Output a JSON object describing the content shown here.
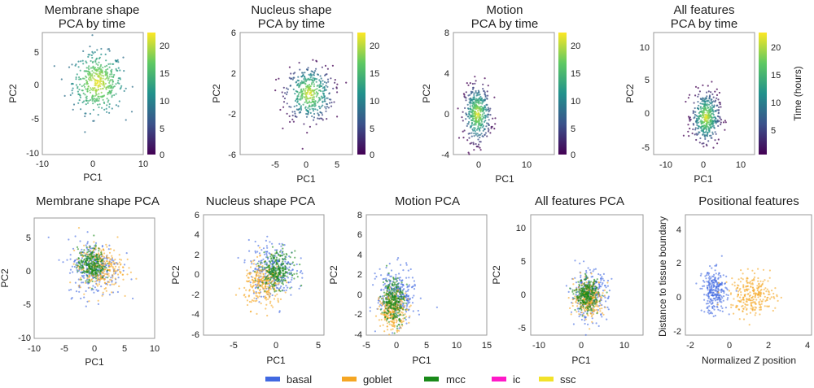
{
  "top_row": [
    {
      "title": [
        "Membrane shape",
        "PCA by time"
      ],
      "xlabel": "PC1",
      "ylabel": "PC2",
      "xticks": [
        -10,
        0,
        10
      ],
      "yticks": [
        5,
        0,
        -5,
        -10
      ],
      "cbar_ticks": [
        20,
        15,
        10,
        5,
        0
      ],
      "cbar_label": ""
    },
    {
      "title": [
        "Nucleus shape",
        "PCA by time"
      ],
      "xlabel": "PC1",
      "ylabel": "PC2",
      "xticks": [
        -5,
        0,
        5
      ],
      "yticks": [
        6,
        2,
        -2,
        -6
      ],
      "cbar_ticks": [
        20,
        15,
        10,
        5,
        0
      ],
      "cbar_label": ""
    },
    {
      "title": [
        "Motion",
        "PCA by time"
      ],
      "xlabel": "PC1",
      "ylabel": "PC2",
      "xticks": [
        0,
        10
      ],
      "yticks": [
        8,
        4,
        0,
        -4
      ],
      "cbar_ticks": [
        20,
        15,
        10,
        5,
        0
      ],
      "cbar_label": ""
    },
    {
      "title": [
        "All features",
        "PCA by time"
      ],
      "xlabel": "PC1",
      "ylabel": "PC2",
      "xticks": [
        -10,
        0,
        10
      ],
      "yticks": [
        10,
        5,
        0,
        -5
      ],
      "cbar_ticks": [
        20,
        15,
        10,
        5
      ],
      "cbar_label": "Time (hours)"
    }
  ],
  "bottom_row": [
    {
      "title": "Membrane shape PCA",
      "xlabel": "PC1",
      "ylabel": "PC2",
      "xticks": [
        -10,
        -5,
        0,
        5,
        10
      ],
      "yticks": [
        5,
        0,
        -5,
        -10
      ]
    },
    {
      "title": "Nucleus shape PCA",
      "xlabel": "PC1",
      "ylabel": "PC2",
      "xticks": [
        -5,
        0,
        5
      ],
      "yticks": [
        6,
        4,
        2,
        0,
        -2,
        -4,
        -6
      ]
    },
    {
      "title": "Motion PCA",
      "xlabel": "PC1",
      "ylabel": "PC2",
      "xticks": [
        -5,
        0,
        5,
        10,
        15
      ],
      "yticks": [
        8,
        6,
        4,
        2,
        0,
        -2,
        -4
      ]
    },
    {
      "title": "All features PCA",
      "xlabel": "PC1",
      "ylabel": "PC2",
      "xticks": [
        -10,
        0,
        10
      ],
      "yticks": [
        10,
        5,
        0,
        -5
      ]
    },
    {
      "title": "Positional features",
      "xlabel": "Normalized Z position",
      "ylabel": "Distance to tissue boundary",
      "xticks": [
        -2,
        0,
        2,
        4
      ],
      "yticks": [
        4,
        2,
        0,
        -2
      ]
    }
  ],
  "legend": [
    {
      "label": "basal",
      "color": "#4169e1"
    },
    {
      "label": "goblet",
      "color": "#f5a623"
    },
    {
      "label": "mcc",
      "color": "#1a8a1a"
    },
    {
      "label": "ic",
      "color": "#ff19c8"
    },
    {
      "label": "ssc",
      "color": "#f2e22a"
    }
  ],
  "chart_data": [
    {
      "type": "scatter",
      "title": "Membrane shape PCA by time",
      "xlabel": "PC1",
      "ylabel": "PC2",
      "xlim": [
        -10,
        10
      ],
      "ylim": [
        -10,
        7
      ],
      "colorbar": {
        "label": "",
        "range": [
          0,
          22
        ],
        "colormap": "viridis"
      },
      "clusters": [
        {
          "center": [
            1,
            0
          ],
          "spread": [
            5.5,
            4.5
          ],
          "time_range": [
            8,
            22
          ]
        }
      ]
    },
    {
      "type": "scatter",
      "title": "Nucleus shape PCA by time",
      "xlabel": "PC1",
      "ylabel": "PC2",
      "xlim": [
        -7,
        6
      ],
      "ylim": [
        -6,
        6
      ],
      "colorbar": {
        "label": "",
        "range": [
          0,
          22
        ],
        "colormap": "viridis"
      },
      "clusters": [
        {
          "center": [
            1,
            0
          ],
          "spread": [
            3,
            3
          ],
          "time_range": [
            0,
            22
          ]
        }
      ]
    },
    {
      "type": "scatter",
      "title": "Motion PCA by time",
      "xlabel": "PC1",
      "ylabel": "PC2",
      "xlim": [
        -5,
        16
      ],
      "ylim": [
        -4,
        8
      ],
      "colorbar": {
        "label": "",
        "range": [
          0,
          22
        ],
        "colormap": "viridis"
      },
      "clusters": [
        {
          "center": [
            0,
            0
          ],
          "spread": [
            3,
            3
          ],
          "time_range": [
            0,
            22
          ]
        }
      ]
    },
    {
      "type": "scatter",
      "title": "All features PCA by time",
      "xlabel": "PC1",
      "ylabel": "PC2",
      "xlim": [
        -14,
        13
      ],
      "ylim": [
        -6,
        12
      ],
      "colorbar": {
        "label": "Time (hours)",
        "range": [
          0,
          22
        ],
        "colormap": "viridis"
      },
      "clusters": [
        {
          "center": [
            0,
            -0.5
          ],
          "spread": [
            4,
            4
          ],
          "time_range": [
            0,
            22
          ]
        }
      ]
    },
    {
      "type": "scatter",
      "title": "Membrane shape PCA",
      "xlabel": "PC1",
      "ylabel": "PC2",
      "xlim": [
        -10,
        10
      ],
      "ylim": [
        -10,
        7
      ],
      "series": [
        {
          "name": "basal",
          "center": [
            0,
            0
          ],
          "spread": [
            5,
            4.5
          ]
        },
        {
          "name": "goblet",
          "center": [
            1,
            0
          ],
          "spread": [
            4,
            3.5
          ]
        },
        {
          "name": "mcc",
          "center": [
            -0.5,
            0.5
          ],
          "spread": [
            2.5,
            2.5
          ]
        }
      ]
    },
    {
      "type": "scatter",
      "title": "Nucleus shape PCA",
      "xlabel": "PC1",
      "ylabel": "PC2",
      "xlim": [
        -8,
        6
      ],
      "ylim": [
        -6,
        6
      ],
      "series": [
        {
          "name": "basal",
          "center": [
            0,
            0.5
          ],
          "spread": [
            3,
            3
          ]
        },
        {
          "name": "goblet",
          "center": [
            -1,
            -1
          ],
          "spread": [
            2.5,
            2.5
          ]
        },
        {
          "name": "mcc",
          "center": [
            0.5,
            0.5
          ],
          "spread": [
            2,
            2
          ]
        }
      ]
    },
    {
      "type": "scatter",
      "title": "Motion PCA",
      "xlabel": "PC1",
      "ylabel": "PC2",
      "xlim": [
        -5,
        15
      ],
      "ylim": [
        -4,
        8
      ],
      "series": [
        {
          "name": "basal",
          "center": [
            0,
            0
          ],
          "spread": [
            3.5,
            3
          ]
        },
        {
          "name": "goblet",
          "center": [
            -0.5,
            -1.5
          ],
          "spread": [
            2.5,
            2
          ]
        },
        {
          "name": "mcc",
          "center": [
            -0.5,
            -0.5
          ],
          "spread": [
            2,
            2.5
          ]
        }
      ]
    },
    {
      "type": "scatter",
      "title": "All features PCA",
      "xlabel": "PC1",
      "ylabel": "PC2",
      "xlim": [
        -14,
        13
      ],
      "ylim": [
        -6,
        12
      ],
      "series": [
        {
          "name": "basal",
          "center": [
            0,
            0
          ],
          "spread": [
            5,
            4
          ]
        },
        {
          "name": "goblet",
          "center": [
            0,
            -0.5
          ],
          "spread": [
            4,
            3
          ]
        },
        {
          "name": "mcc",
          "center": [
            -0.5,
            0
          ],
          "spread": [
            3,
            2.5
          ]
        }
      ]
    },
    {
      "type": "scatter",
      "title": "Positional features",
      "xlabel": "Normalized Z position",
      "ylabel": "Distance to tissue boundary",
      "xlim": [
        -2.5,
        4
      ],
      "ylim": [
        -2.5,
        5
      ],
      "series": [
        {
          "name": "basal",
          "center": [
            -1,
            0.2
          ],
          "spread": [
            0.7,
            1.5
          ]
        },
        {
          "name": "goblet",
          "center": [
            1,
            0
          ],
          "spread": [
            1.3,
            1.4
          ]
        }
      ]
    }
  ]
}
